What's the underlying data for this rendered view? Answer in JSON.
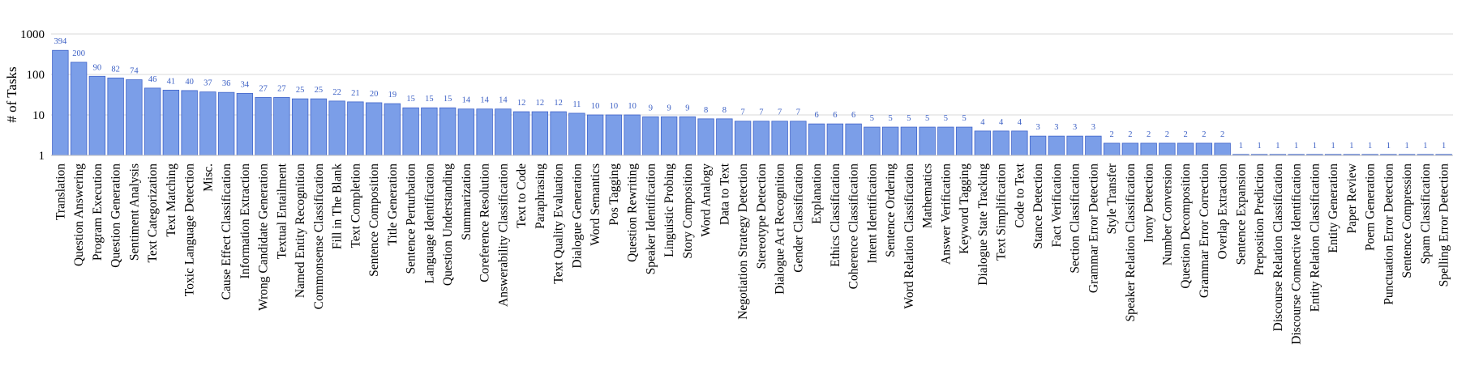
{
  "chart_data": {
    "type": "bar",
    "ylabel": "# of Tasks",
    "yscale": "log",
    "ylim": [
      1,
      1000
    ],
    "yticks": [
      "1",
      "10",
      "100",
      "1000"
    ],
    "grid": true,
    "bar_color": "#7b9ee8",
    "bar_edge_color": "#3f63c9",
    "label_color": "#3b5fc4",
    "categories": [
      "Translation",
      "Question Answering",
      "Program Execution",
      "Question Generation",
      "Sentiment Analysis",
      "Text Categorization",
      "Text Matching",
      "Toxic Language Detection",
      "Misc.",
      "Cause Effect Classification",
      "Information Extraction",
      "Wrong Candidate Generation",
      "Textual Entailment",
      "Named Entity Recognition",
      "Commonsense Classification",
      "Fill in The Blank",
      "Text Completion",
      "Sentence Composition",
      "Title Generation",
      "Sentence Perturbation",
      "Language Identification",
      "Question Understanding",
      "Summarization",
      "Coreference Resolution",
      "Answerability Classification",
      "Text to Code",
      "Paraphrasing",
      "Text Quality Evaluation",
      "Dialogue Generation",
      "Word Semantics",
      "Pos Tagging",
      "Question Rewriting",
      "Speaker Identification",
      "Linguistic Probing",
      "Story Composition",
      "Word Analogy",
      "Data to Text",
      "Negotiation Strategy Detection",
      "Stereotype Detection",
      "Dialogue Act Recognition",
      "Gender Classification",
      "Explanation",
      "Ethics Classification",
      "Coherence Classification",
      "Intent Identification",
      "Sentence Ordering",
      "Word Relation Classification",
      "Mathematics",
      "Answer Verification",
      "Keyword Tagging",
      "Dialogue State Tracking",
      "Text Simplification",
      "Code to Text",
      "Stance Detection",
      "Fact Verification",
      "Section Classification",
      "Grammar Error Detection",
      "Style Transfer",
      "Speaker Relation Classification",
      "Irony Detection",
      "Number Conversion",
      "Question Decomposition",
      "Grammar Error Correction",
      "Overlap Extraction",
      "Sentence Expansion",
      "Preposition Prediction",
      "Discourse Relation Classification",
      "Discourse Connective Identification",
      "Entity Relation Classification",
      "Entity Generation",
      "Paper Review",
      "Poem Generation",
      "Punctuation Error Detection",
      "Sentence Compression",
      "Spam Classification",
      "Spelling Error Detection"
    ],
    "values": [
      394,
      200,
      90,
      82,
      74,
      46,
      41,
      40,
      37,
      36,
      34,
      27,
      27,
      25,
      25,
      22,
      21,
      20,
      19,
      15,
      15,
      15,
      14,
      14,
      14,
      12,
      12,
      12,
      11,
      10,
      10,
      10,
      9,
      9,
      9,
      8,
      8,
      7,
      7,
      7,
      7,
      6,
      6,
      6,
      5,
      5,
      5,
      5,
      5,
      5,
      4,
      4,
      4,
      3,
      3,
      3,
      3,
      2,
      2,
      2,
      2,
      2,
      2,
      2,
      1,
      1,
      1,
      1,
      1,
      1,
      1,
      1,
      1,
      1,
      1,
      1
    ]
  }
}
